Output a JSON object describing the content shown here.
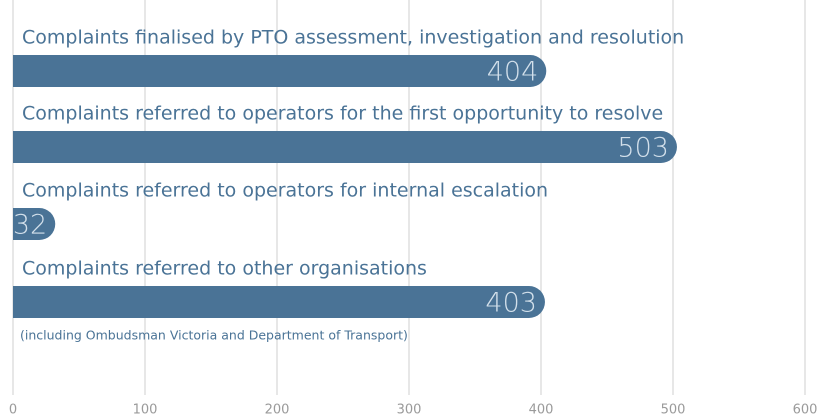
{
  "chart_data": {
    "type": "bar",
    "orientation": "horizontal",
    "categories": [
      "Complaints finalised by PTO assessment, investigation and resolution",
      "Complaints referred to operators for the first opportunity to resolve",
      "Complaints referred to operators for internal escalation",
      "Complaints referred to other organisations"
    ],
    "values": [
      404,
      503,
      32,
      403
    ],
    "annotation": "(including Ombudsman Victoria and Department of Transport)",
    "color": "#4a7396",
    "xlim": [
      0,
      600
    ],
    "xticks": [
      0,
      100,
      200,
      300,
      400,
      500,
      600
    ],
    "grid": true
  }
}
